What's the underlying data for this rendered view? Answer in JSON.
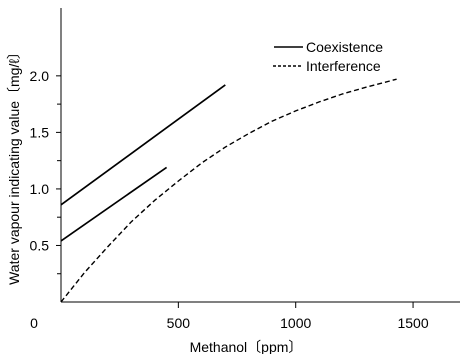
{
  "chart_data": {
    "type": "line",
    "title": "",
    "xlabel": "Methanol〔ppm〕",
    "ylabel": "Water vapour indicating value〔mg/ℓ〕",
    "xlim": [
      0,
      1700
    ],
    "ylim": [
      0,
      2.6
    ],
    "x_ticks": [
      0,
      500,
      1000,
      1500
    ],
    "x_tick_labels": [
      "0",
      "500",
      "1000",
      "1500"
    ],
    "y_ticks": [
      0.5,
      1.0,
      1.5,
      2.0
    ],
    "y_tick_labels": [
      "0.5",
      "1.0",
      "1.5",
      "2.0"
    ],
    "grid": false,
    "legend_position": "top-right",
    "legend": [
      {
        "label": "Coexistence",
        "style": "solid"
      },
      {
        "label": "Interference",
        "style": "dashed"
      }
    ],
    "series": [
      {
        "group": "Coexistence",
        "style": "solid",
        "points": [
          [
            0,
            0.86
          ],
          [
            700,
            1.92
          ]
        ]
      },
      {
        "group": "Coexistence",
        "style": "solid",
        "points": [
          [
            0,
            0.54
          ],
          [
            450,
            1.19
          ]
        ]
      },
      {
        "group": "Interference",
        "style": "dashed",
        "points": [
          [
            0,
            0.0
          ],
          [
            100,
            0.26
          ],
          [
            200,
            0.49
          ],
          [
            300,
            0.71
          ],
          [
            400,
            0.9
          ],
          [
            500,
            1.07
          ],
          [
            600,
            1.23
          ],
          [
            700,
            1.37
          ],
          [
            800,
            1.49
          ],
          [
            900,
            1.6
          ],
          [
            1000,
            1.69
          ],
          [
            1100,
            1.77
          ],
          [
            1200,
            1.84
          ],
          [
            1300,
            1.9
          ],
          [
            1430,
            1.97
          ]
        ]
      }
    ],
    "colors": {
      "line": "#000000"
    }
  }
}
